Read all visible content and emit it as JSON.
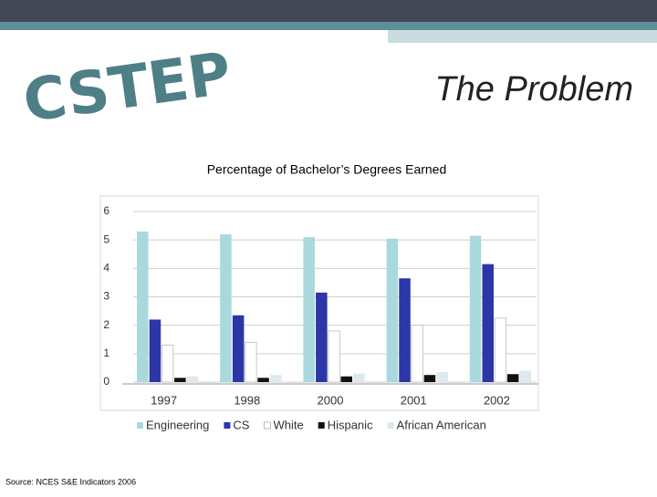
{
  "slide": {
    "title": "The Problem",
    "logo": "CSTEP",
    "source": "Source: NCES S&E Indicators 2006"
  },
  "chart_data": {
    "type": "bar",
    "title": "Percentage of Bachelor’s Degrees Earned",
    "categories": [
      "1997",
      "1998",
      "2000",
      "2001",
      "2002"
    ],
    "series": [
      {
        "name": "Engineering",
        "color": "#a9d9dd",
        "values": [
          5.3,
          5.2,
          5.1,
          5.05,
          5.15
        ]
      },
      {
        "name": "CS",
        "color": "#2c36a6",
        "values": [
          2.2,
          2.35,
          3.15,
          3.65,
          4.15
        ]
      },
      {
        "name": "White",
        "color": "#ffffff",
        "values": [
          1.3,
          1.4,
          1.8,
          2.0,
          2.25
        ]
      },
      {
        "name": "Hispanic",
        "color": "#111111",
        "values": [
          0.15,
          0.15,
          0.2,
          0.25,
          0.28
        ]
      },
      {
        "name": "African American",
        "color": "#dde9ee",
        "values": [
          0.2,
          0.25,
          0.3,
          0.35,
          0.4
        ]
      }
    ],
    "ylim": [
      0,
      6
    ],
    "yticks": [
      0,
      1,
      2,
      3,
      4,
      5,
      6
    ],
    "grid": true,
    "legend": "bottom"
  }
}
